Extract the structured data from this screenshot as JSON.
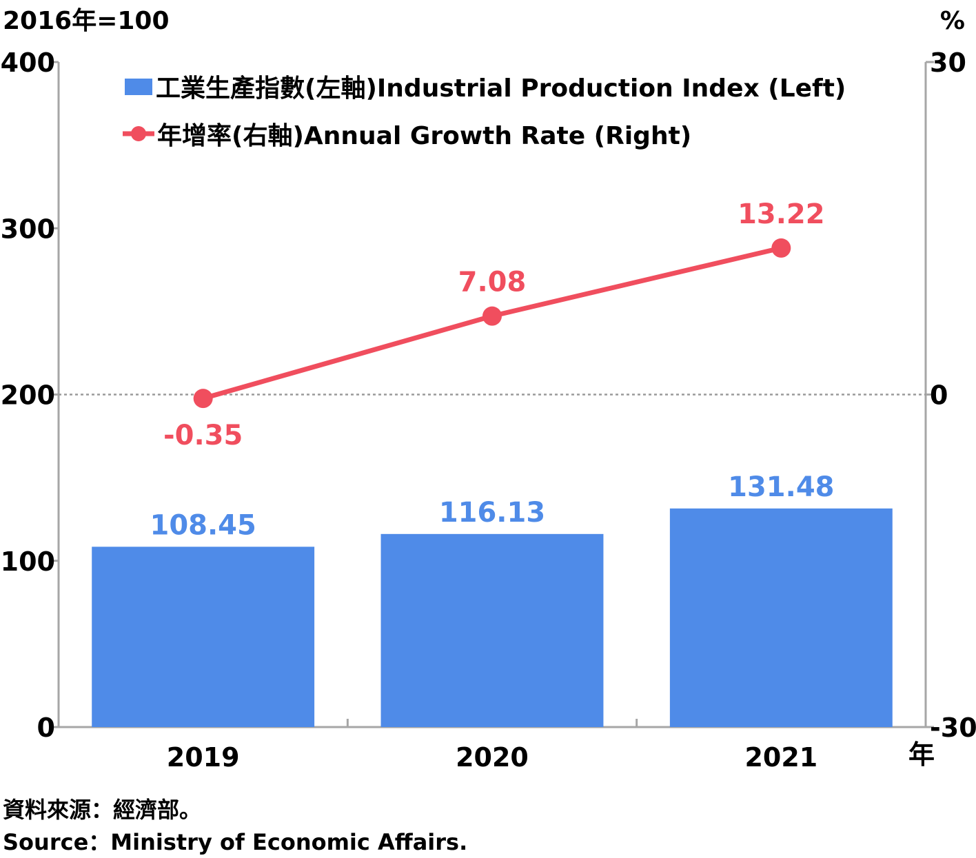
{
  "chart_data": {
    "type": "bar",
    "categories": [
      "2019",
      "2020",
      "2021"
    ],
    "series": [
      {
        "name": "工業生產指數(左軸)Industrial Production Index (Left)",
        "type": "bar",
        "axis": "left",
        "values": [
          108.45,
          116.13,
          131.48
        ],
        "labels": [
          "108.45",
          "116.13",
          "131.48"
        ],
        "color": "#4f8be8"
      },
      {
        "name": "年增率(右軸)Annual Growth Rate (Right)",
        "type": "line",
        "axis": "right",
        "values": [
          -0.35,
          7.08,
          13.22
        ],
        "labels": [
          "-0.35",
          "7.08",
          "13.22"
        ],
        "color": "#f04e5e"
      }
    ],
    "left_axis": {
      "unit": "2016年=100",
      "ylim": [
        0,
        400
      ],
      "ticks": [
        "0",
        "100",
        "200",
        "300",
        "400"
      ]
    },
    "right_axis": {
      "unit": "%",
      "ylim": [
        -30,
        30
      ],
      "ticks": [
        "-30",
        "0",
        "30"
      ]
    },
    "xlabel": "年",
    "zero_reference_line": "dotted at right-axis 0",
    "grid": false,
    "legend_position": "top-left",
    "axis_color": "#a6a6a6",
    "zero_line_color": "#9a9a9a"
  },
  "source": {
    "zh": "資料來源：經濟部。",
    "en": "Source：Ministry of Economic Affairs."
  }
}
